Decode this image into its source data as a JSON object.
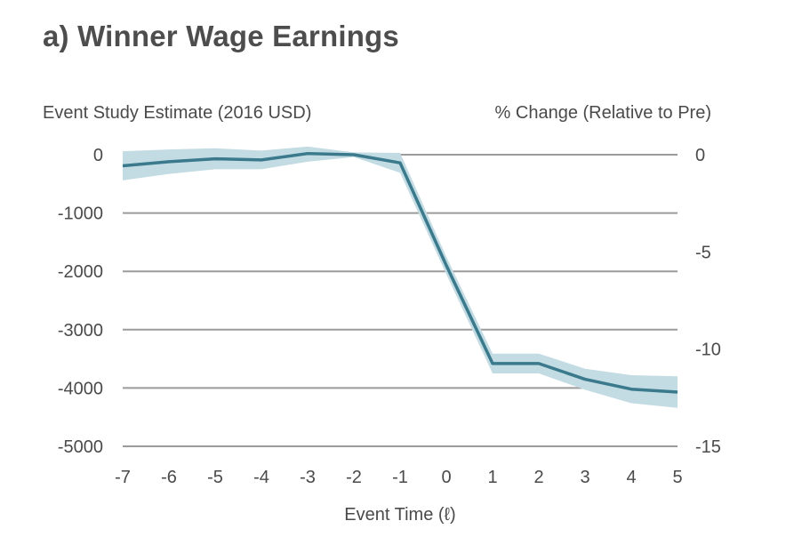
{
  "title": "a) Winner Wage Earnings",
  "chart_data": {
    "type": "line",
    "title": "a) Winner Wage Earnings",
    "ylabel_left": "Event Study Estimate (2016 USD)",
    "ylabel_right": "% Change (Relative to Pre)",
    "xlabel": "Event Time (ℓ)",
    "x": [
      -7,
      -6,
      -5,
      -4,
      -3,
      -2,
      -1,
      0,
      1,
      2,
      3,
      4,
      5
    ],
    "series": [
      {
        "values": [
          -190,
          -120,
          -70,
          -90,
          20,
          0,
          -140,
          -1900,
          -3580,
          -3580,
          -3850,
          -4020,
          -4070
        ],
        "ci_lower": [
          -440,
          -330,
          -250,
          -250,
          -120,
          -40,
          -310,
          -2050,
          -3750,
          -3750,
          -4030,
          -4260,
          -4340
        ],
        "ci_upper": [
          60,
          90,
          110,
          70,
          140,
          40,
          30,
          -1750,
          -3410,
          -3410,
          -3670,
          -3780,
          -3800
        ],
        "color": "#3a7a8c",
        "band_color": "#c3dbe3"
      }
    ],
    "xticks": [
      "-7",
      "-6",
      "-5",
      "-4",
      "-3",
      "-2",
      "-1",
      "0",
      "1",
      "2",
      "3",
      "4",
      "5"
    ],
    "yticks_left": [
      "0",
      "-1000",
      "-2000",
      "-3000",
      "-4000",
      "-5000"
    ],
    "yticks_left_values": [
      0,
      -1000,
      -2000,
      -3000,
      -4000,
      -5000
    ],
    "yticks_right": [
      "0",
      "-5",
      "-10",
      "-15"
    ],
    "yticks_right_values": [
      0,
      -5,
      -10,
      -15
    ],
    "ylim_left": [
      -5000,
      0
    ],
    "ylim_right": [
      -15,
      0
    ],
    "grid": true,
    "gridline_color": "#9b9b9b"
  }
}
